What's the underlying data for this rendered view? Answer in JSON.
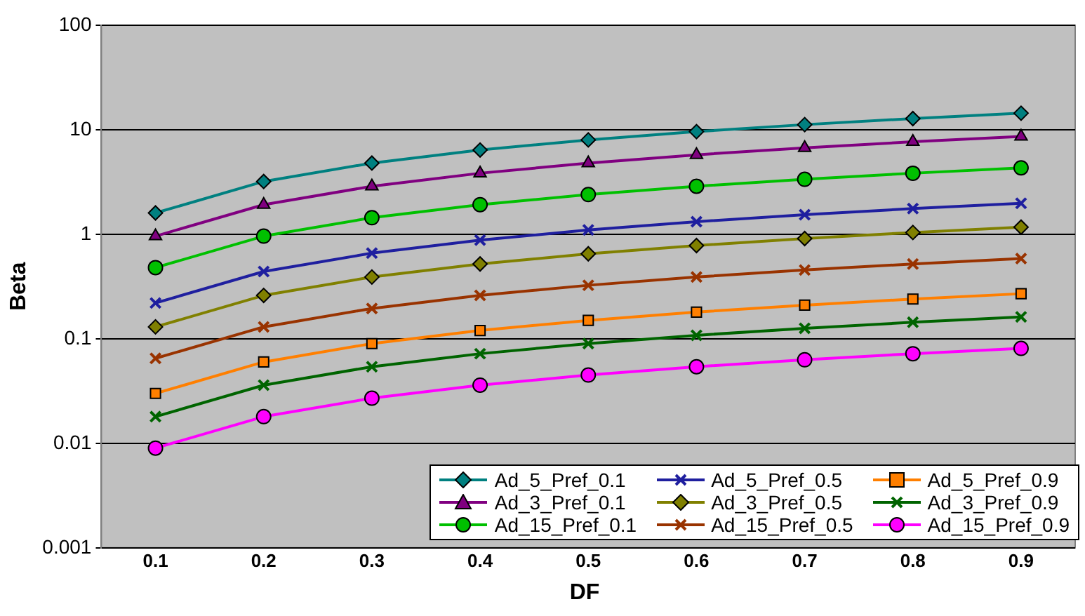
{
  "chart_data": {
    "type": "line",
    "xlabel": "DF",
    "ylabel": "Beta",
    "categories": [
      "0.1",
      "0.2",
      "0.3",
      "0.4",
      "0.5",
      "0.6",
      "0.7",
      "0.8",
      "0.9"
    ],
    "log": "y",
    "ylim": [
      0.001,
      100
    ],
    "yticks": [
      0.001,
      0.01,
      0.1,
      1,
      10,
      100
    ],
    "grid": "y",
    "legend": "bottom right",
    "line_style": "solid",
    "series": [
      {
        "name": "Ad_5_Pref_0.1",
        "color": "#008080",
        "marker": "diamond",
        "values": [
          1.6,
          3.2,
          4.8,
          6.4,
          8,
          9.6,
          11.2,
          12.8,
          14.4
        ]
      },
      {
        "name": "Ad_5_Pref_0.5",
        "color": "#1f1f9f",
        "marker": "cross",
        "values": [
          0.22,
          0.44,
          0.66,
          0.88,
          1.1,
          1.32,
          1.54,
          1.76,
          1.98
        ]
      },
      {
        "name": "Ad_5_Pref_0.9",
        "color": "#ff7f00",
        "marker": "square",
        "values": [
          0.03,
          0.06,
          0.09,
          0.12,
          0.15,
          0.18,
          0.21,
          0.24,
          0.27
        ]
      },
      {
        "name": "Ad_3_Pref_0.1",
        "color": "#800080",
        "marker": "triangle",
        "values": [
          0.96,
          1.92,
          2.88,
          3.84,
          4.8,
          5.76,
          6.72,
          7.68,
          8.64
        ]
      },
      {
        "name": "Ad_3_Pref_0.5",
        "color": "#808000",
        "marker": "diamond",
        "values": [
          0.13,
          0.26,
          0.39,
          0.52,
          0.65,
          0.78,
          0.91,
          1.04,
          1.17
        ]
      },
      {
        "name": "Ad_3_Pref_0.9",
        "color": "#006400",
        "marker": "cross",
        "values": [
          0.018,
          0.036,
          0.054,
          0.072,
          0.09,
          0.108,
          0.126,
          0.144,
          0.162
        ]
      },
      {
        "name": "Ad_15_Pref_0.1",
        "color": "#00c000",
        "marker": "circle",
        "values": [
          0.48,
          0.96,
          1.44,
          1.92,
          2.4,
          2.88,
          3.36,
          3.84,
          4.32
        ]
      },
      {
        "name": "Ad_15_Pref_0.5",
        "color": "#993300",
        "marker": "cross",
        "values": [
          0.065,
          0.13,
          0.195,
          0.26,
          0.325,
          0.39,
          0.455,
          0.52,
          0.585
        ]
      },
      {
        "name": "Ad_15_Pref_0.9",
        "color": "#ff00ff",
        "marker": "circle",
        "values": [
          0.009,
          0.018,
          0.027,
          0.036,
          0.045,
          0.054,
          0.063,
          0.072,
          0.081
        ]
      }
    ]
  }
}
